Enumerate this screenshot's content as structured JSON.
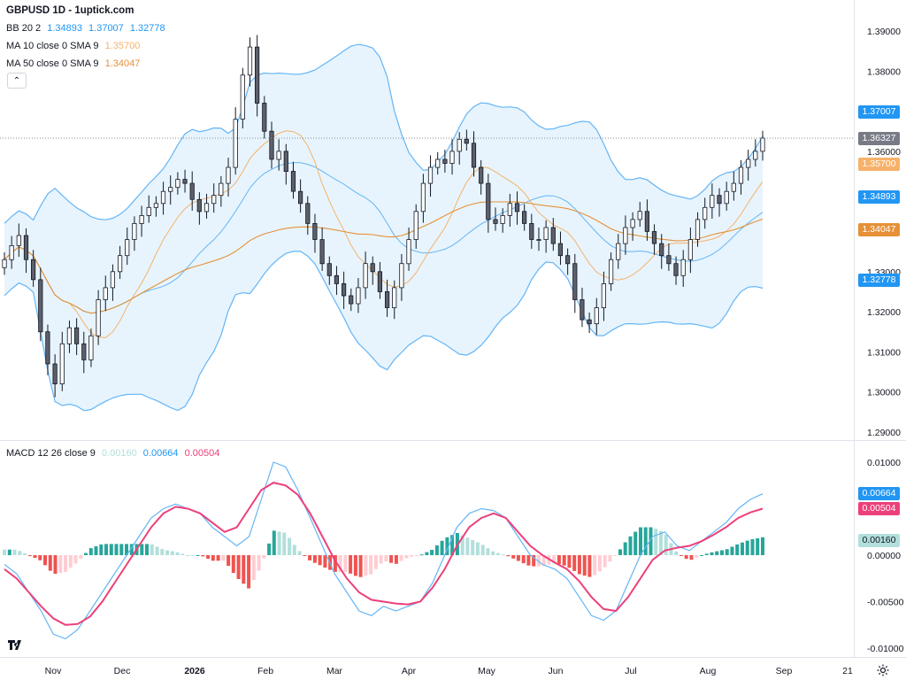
{
  "legend": {
    "title": "GBPUSD 1D - 1uptick.com",
    "bb": {
      "label": "BB 20 2",
      "basis": "1.34893",
      "upper": "1.37007",
      "lower": "1.32778"
    },
    "ma10": {
      "label": "MA 10 close 0 SMA 9",
      "value": "1.35700"
    },
    "ma50": {
      "label": "MA 50 close 0 SMA 9",
      "value": "1.34047"
    },
    "macd": {
      "label": "MACD 12 26 close 9",
      "hist": "0.00160",
      "macd": "0.00664",
      "signal": "0.00504"
    }
  },
  "colors": {
    "up": "#ffffff",
    "down": "#5d606b",
    "bb_band": "#64b5f6",
    "bb_fill": "#e3f2fd",
    "ma10": "#f6b26b",
    "ma50": "#e69138",
    "macd_line": "#64b5f6",
    "signal_line": "#ec407a",
    "hist_pos_strong": "#26a69a",
    "hist_pos_weak": "#b2dfdb",
    "hist_neg_strong": "#ef5350",
    "hist_neg_weak": "#ffcdd2"
  },
  "tags": {
    "bb_upper": "1.37007",
    "last_price": "1.36327",
    "ma10": "1.35700",
    "bb_basis": "1.34893",
    "ma50": "1.34047",
    "bb_lower": "1.32778",
    "macd": "0.00664",
    "signal": "0.00504",
    "hist": "0.00160"
  },
  "chart_data": [
    {
      "type": "candlestick",
      "symbol": "GBPUSD",
      "timeframe": "1D",
      "ylim": [
        1.285,
        1.392
      ],
      "y_ticks": [
        "1.39000",
        "1.38000",
        "1.36000",
        "1.33000",
        "1.32000",
        "1.31000",
        "1.30000",
        "1.29000"
      ],
      "x_ticks": [
        "Nov",
        "Dec",
        "2026",
        "Feb",
        "Mar",
        "Apr",
        "May",
        "Jun",
        "Jul",
        "Aug",
        "Sep",
        "21"
      ],
      "last_price": 1.36327,
      "close_series": [
        1.333,
        1.3365,
        1.339,
        1.333,
        1.328,
        1.315,
        1.307,
        1.302,
        1.312,
        1.316,
        1.312,
        1.308,
        1.314,
        1.323,
        1.326,
        1.33,
        1.334,
        1.338,
        1.342,
        1.344,
        1.346,
        1.347,
        1.35,
        1.351,
        1.353,
        1.352,
        1.348,
        1.345,
        1.347,
        1.349,
        1.352,
        1.356,
        1.368,
        1.379,
        1.386,
        1.372,
        1.365,
        1.358,
        1.36,
        1.355,
        1.35,
        1.347,
        1.342,
        1.338,
        1.332,
        1.329,
        1.327,
        1.324,
        1.322,
        1.326,
        1.332,
        1.33,
        1.325,
        1.321,
        1.326,
        1.332,
        1.338,
        1.345,
        1.352,
        1.356,
        1.358,
        1.357,
        1.36,
        1.363,
        1.362,
        1.356,
        1.352,
        1.343,
        1.342,
        1.344,
        1.347,
        1.345,
        1.342,
        1.338,
        1.338,
        1.341,
        1.337,
        1.334,
        1.332,
        1.323,
        1.318,
        1.317,
        1.321,
        1.327,
        1.333,
        1.337,
        1.341,
        1.343,
        1.345,
        1.34,
        1.337,
        1.334,
        1.332,
        1.329,
        1.333,
        1.338,
        1.343,
        1.346,
        1.349,
        1.347,
        1.35,
        1.352,
        1.356,
        1.358,
        1.36,
        1.3633
      ],
      "bb": {
        "upper": 1.37007,
        "basis": 1.34893,
        "lower": 1.32778
      },
      "ma10": 1.357,
      "ma50": 1.34047
    },
    {
      "type": "line",
      "title": "MACD 12 26 close 9",
      "ylim": [
        -0.0115,
        0.0115
      ],
      "y_ticks": [
        "0.01000",
        "0.00000",
        "-0.00500",
        "-0.01000"
      ],
      "macd_last": 0.00664,
      "signal_last": 0.00504,
      "hist_last": 0.0016,
      "macd_series": [
        -0.001,
        -0.002,
        -0.004,
        -0.006,
        -0.0085,
        -0.009,
        -0.008,
        -0.006,
        -0.004,
        -0.002,
        0.0,
        0.002,
        0.004,
        0.005,
        0.0055,
        0.005,
        0.0045,
        0.003,
        0.002,
        0.001,
        0.002,
        0.006,
        0.01,
        0.0095,
        0.007,
        0.004,
        0.001,
        -0.002,
        -0.004,
        -0.006,
        -0.0065,
        -0.0055,
        -0.006,
        -0.0055,
        -0.005,
        -0.003,
        0.0,
        0.003,
        0.0045,
        0.005,
        0.0048,
        0.004,
        0.002,
        0.0,
        -0.001,
        -0.0015,
        -0.0025,
        -0.0045,
        -0.0065,
        -0.007,
        -0.006,
        -0.003,
        0.0,
        0.002,
        0.0025,
        0.001,
        0.0005,
        0.0015,
        0.0025,
        0.0035,
        0.005,
        0.006,
        0.0066
      ],
      "signal_series": [
        -0.0015,
        -0.0025,
        -0.004,
        -0.0055,
        -0.0068,
        -0.0075,
        -0.0074,
        -0.0066,
        -0.005,
        -0.003,
        -0.001,
        0.001,
        0.003,
        0.0045,
        0.0052,
        0.005,
        0.0045,
        0.0035,
        0.0025,
        0.003,
        0.005,
        0.007,
        0.0078,
        0.0075,
        0.0065,
        0.0045,
        0.002,
        -0.0005,
        -0.0025,
        -0.004,
        -0.0048,
        -0.005,
        -0.0052,
        -0.0053,
        -0.005,
        -0.0035,
        -0.0015,
        0.001,
        0.003,
        0.004,
        0.0045,
        0.004,
        0.0025,
        0.001,
        0.0,
        -0.0008,
        -0.0015,
        -0.0028,
        -0.0045,
        -0.0058,
        -0.006,
        -0.0045,
        -0.0025,
        -0.0005,
        0.0005,
        0.0008,
        0.001,
        0.0015,
        0.0022,
        0.003,
        0.004,
        0.0046,
        0.005
      ]
    }
  ]
}
